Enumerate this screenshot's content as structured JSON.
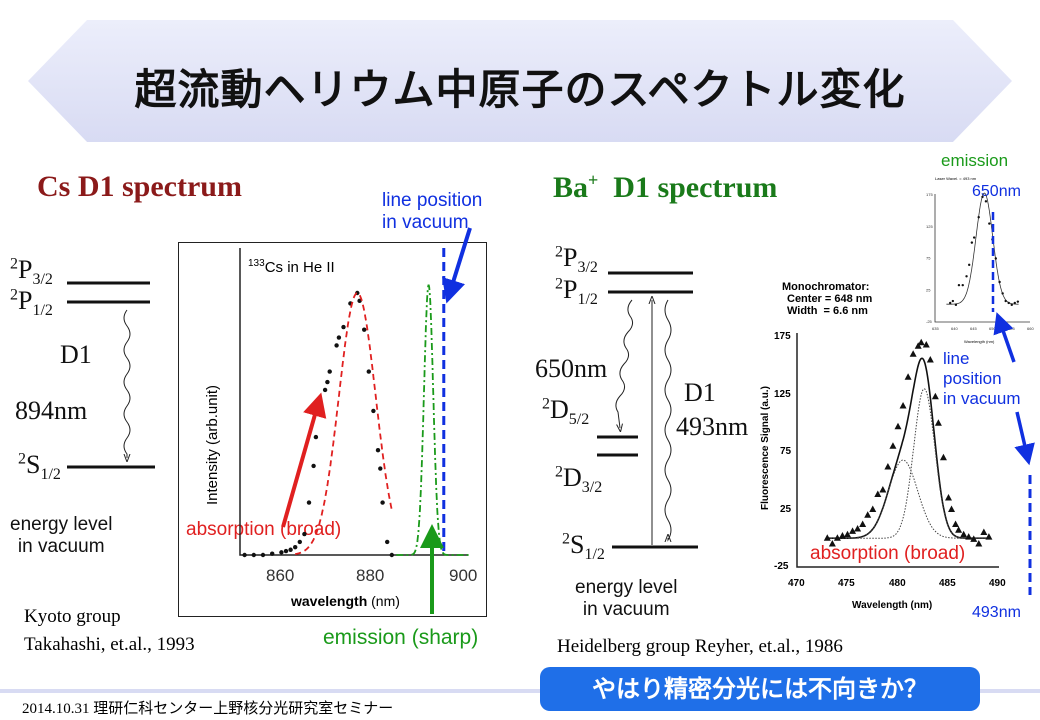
{
  "title": "超流動ヘリウム中原子のスペクトル変化",
  "left": {
    "heading": "Cs  D1 spectrum",
    "levels": {
      "p32": {
        "sup": "2",
        "main": "P",
        "sub": "3/2"
      },
      "p12": {
        "sup": "2",
        "main": "P",
        "sub": "1/2"
      },
      "s12": {
        "sup": "2",
        "main": "S",
        "sub": "1/2"
      }
    },
    "transition": "D1",
    "wavelength": "894nm",
    "energy_note": [
      "energy level",
      "in vacuum"
    ],
    "credit": [
      "Kyoto group",
      "Takahashi, et.al., 1993"
    ],
    "line_position": [
      "line position",
      "in vacuum"
    ],
    "absorption_label": "absorption (broad)",
    "emission_label": "emission (sharp)"
  },
  "right": {
    "heading_main": "Ba",
    "heading_sup": "+",
    "heading_rest": "  D1 spectrum",
    "levels": {
      "p32": {
        "sup": "2",
        "main": "P",
        "sub": "3/2"
      },
      "p12": {
        "sup": "2",
        "main": "P",
        "sub": "1/2"
      },
      "d52": {
        "sup": "2",
        "main": "D",
        "sub": "5/2"
      },
      "d32": {
        "sup": "2",
        "main": "D",
        "sub": "3/2"
      },
      "s12": {
        "sup": "2",
        "main": "S",
        "sub": "1/2"
      }
    },
    "wl_650": "650nm",
    "transition": "D1",
    "wl_493": "493nm",
    "energy_note": [
      "energy level",
      "in vacuum"
    ],
    "credit": "Heidelberg group Reyher, et.al., 1986",
    "emission_label": "emission",
    "emission_wl": "650nm",
    "line_position": [
      "line",
      "position",
      "in vacuum"
    ],
    "absorption_label": "absorption (broad)",
    "vacuum_wl": "493nm",
    "monochromator": [
      "Monochromator:",
      "Center = 648 nm",
      "Width  = 6.6 nm"
    ]
  },
  "footer": {
    "date": "2014.10.31",
    "seminar": "理研仁科センター上野核分光研究室セミナー",
    "callout": "やはり精密分光には不向きか？"
  },
  "chart_data": [
    {
      "type": "scatter",
      "title": "133Cs in He II",
      "title_sup": "133",
      "title_rest": "Cs in He II",
      "xlabel": "wavelength",
      "xunit": "(nm)",
      "ylabel": "Intensity (arb.unit)",
      "xlim": [
        850,
        902
      ],
      "ylim": [
        0,
        1.15
      ],
      "xticks": [
        "860",
        "880",
        "900"
      ],
      "xtick_values": [
        860,
        880,
        900
      ],
      "absorption_points": [
        [
          851,
          0
        ],
        [
          853,
          0
        ],
        [
          855,
          0
        ],
        [
          857,
          0.005
        ],
        [
          859,
          0.01
        ],
        [
          860,
          0.015
        ],
        [
          861,
          0.02
        ],
        [
          862,
          0.03
        ],
        [
          863,
          0.05
        ],
        [
          864,
          0.08
        ],
        [
          865,
          0.2
        ],
        [
          866,
          0.34
        ],
        [
          866.5,
          0.45
        ],
        [
          867.5,
          0.55
        ],
        [
          868.5,
          0.63
        ],
        [
          869,
          0.66
        ],
        [
          869.5,
          0.7
        ],
        [
          871,
          0.8
        ],
        [
          871.5,
          0.83
        ],
        [
          872.5,
          0.87
        ],
        [
          874,
          0.96
        ],
        [
          875.5,
          1.0
        ],
        [
          876,
          0.97
        ],
        [
          877,
          0.86
        ],
        [
          878,
          0.7
        ],
        [
          879,
          0.55
        ],
        [
          880,
          0.4
        ],
        [
          880.5,
          0.33
        ],
        [
          881,
          0.2
        ],
        [
          882,
          0.05
        ],
        [
          883,
          0
        ]
      ],
      "absorption_fit": {
        "center": 875.5,
        "sigma": 4.0,
        "amplitude": 1.0
      },
      "emission_fit": {
        "center": 891,
        "sigma": 1.0,
        "amplitude": 1.03
      },
      "vacuum_line": 894.3
    },
    {
      "type": "line",
      "xlabel": "Wavelength (nm)",
      "ylabel": "Fluorescence Signal (a.u.)",
      "xlim": [
        470,
        490
      ],
      "ylim": [
        -25,
        175
      ],
      "xticks": [
        "470",
        "475",
        "480",
        "485",
        "490"
      ],
      "yticks": [
        "175",
        "125",
        "75",
        "25",
        "-25"
      ],
      "components": [
        {
          "center": 480.5,
          "sigma": 1.45,
          "amplitude": 68
        },
        {
          "center": 482.6,
          "sigma": 1.05,
          "amplitude": 130
        }
      ],
      "points": [
        [
          473,
          0
        ],
        [
          473.5,
          -5
        ],
        [
          474,
          0
        ],
        [
          474.5,
          2
        ],
        [
          475,
          3
        ],
        [
          475.5,
          6
        ],
        [
          476,
          8
        ],
        [
          476.5,
          12
        ],
        [
          477,
          20
        ],
        [
          477.5,
          25
        ],
        [
          478,
          38
        ],
        [
          478.5,
          42
        ],
        [
          479,
          62
        ],
        [
          479.5,
          80
        ],
        [
          480,
          97
        ],
        [
          480.5,
          115
        ],
        [
          481,
          140
        ],
        [
          481.5,
          160
        ],
        [
          482,
          167
        ],
        [
          482.3,
          170
        ],
        [
          482.8,
          168
        ],
        [
          483.2,
          155
        ],
        [
          483.7,
          123
        ],
        [
          484,
          100
        ],
        [
          484.5,
          70
        ],
        [
          485,
          35
        ],
        [
          485.3,
          25
        ],
        [
          485.7,
          12
        ],
        [
          486,
          7
        ],
        [
          486.5,
          3
        ],
        [
          487,
          1
        ],
        [
          487.5,
          -1
        ],
        [
          488,
          -5
        ],
        [
          488.5,
          5
        ],
        [
          489,
          1
        ]
      ],
      "vacuum_line": 493
    },
    {
      "type": "line",
      "title": "Laser Wavel. = 493 nm",
      "xlabel": "Wavelength (nm)",
      "xlim": [
        635,
        660
      ],
      "ylim": [
        -25,
        175
      ],
      "xticks": [
        "635",
        "640",
        "645",
        "650",
        "655",
        "660"
      ],
      "yticks": [
        "175",
        "125",
        "75",
        "25",
        "-25"
      ],
      "fit": {
        "center": 648,
        "sigma": 2.2,
        "amplitude": 175,
        "offset": 3
      },
      "points": [
        [
          639,
          5
        ],
        [
          639.7,
          8
        ],
        [
          640.5,
          2
        ],
        [
          641.3,
          33
        ],
        [
          642.3,
          33
        ],
        [
          643.3,
          47
        ],
        [
          644,
          65
        ],
        [
          644.7,
          100
        ],
        [
          645.3,
          108
        ],
        [
          646.5,
          140
        ],
        [
          647.5,
          172
        ],
        [
          648.4,
          165
        ],
        [
          649.3,
          130
        ],
        [
          650.1,
          105
        ],
        [
          651,
          75
        ],
        [
          652,
          38
        ],
        [
          652.8,
          20
        ],
        [
          653.6,
          8
        ],
        [
          654.4,
          5
        ],
        [
          655.2,
          2
        ],
        [
          656,
          5
        ],
        [
          656.8,
          7
        ]
      ],
      "vacuum_line": 650
    }
  ],
  "colors": {
    "cs_heading": "#8b1a1a",
    "ba_heading": "#1a7a1a",
    "annotation_blue": "#1030e0",
    "absorption_red": "#e02020",
    "emission_green": "#1a9a1a",
    "callout_bg": "#1f6fe8"
  }
}
